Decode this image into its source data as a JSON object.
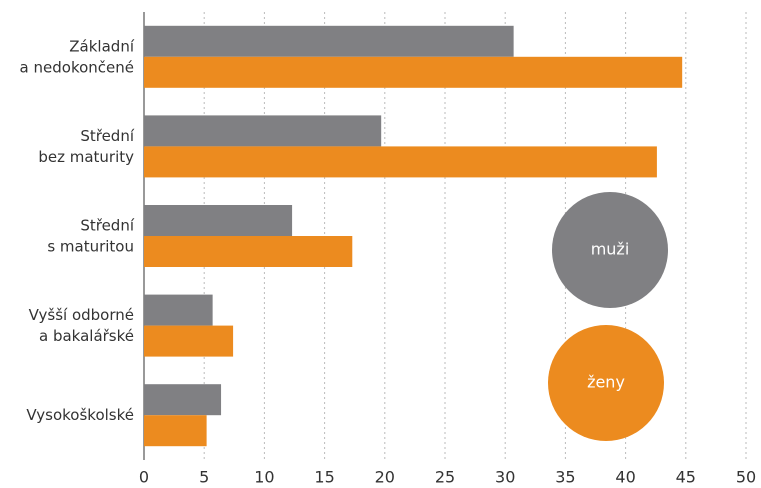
{
  "chart_data": {
    "type": "hbar",
    "categories": [
      "Základní\na nedokončené",
      "Střední\nbez maturity",
      "Střední\ns maturitou",
      "Vyšší odborné\na bakalářské",
      "Vysokoškolské"
    ],
    "series": [
      {
        "name": "muži",
        "color": "#808083",
        "values": [
          30.7,
          19.7,
          12.3,
          5.7,
          6.4
        ]
      },
      {
        "name": "ženy",
        "color": "#ec8b1f",
        "values": [
          44.7,
          42.6,
          17.3,
          7.4,
          5.2
        ]
      }
    ],
    "xlim": [
      0,
      50
    ],
    "xticks": [
      0,
      5,
      10,
      15,
      20,
      25,
      30,
      35,
      40,
      45,
      50
    ],
    "grid": true
  }
}
